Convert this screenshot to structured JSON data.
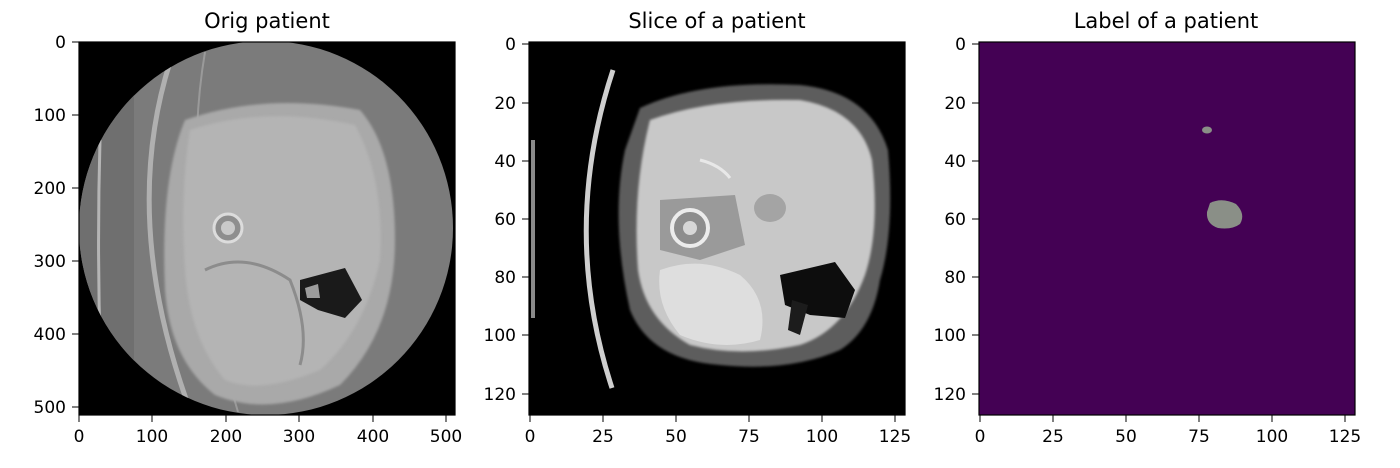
{
  "panels": [
    {
      "title": "Orig patient",
      "x_ticks": [
        "0",
        "100",
        "200",
        "300",
        "400",
        "500"
      ],
      "y_ticks": [
        "0",
        "100",
        "200",
        "300",
        "400",
        "500"
      ],
      "extent": [
        0,
        512
      ]
    },
    {
      "title": "Slice of a patient",
      "x_ticks": [
        "0",
        "25",
        "50",
        "75",
        "100",
        "125"
      ],
      "y_ticks": [
        "0",
        "20",
        "40",
        "60",
        "80",
        "100",
        "120"
      ],
      "extent": [
        0,
        128
      ]
    },
    {
      "title": "Label of a patient",
      "x_ticks": [
        "0",
        "25",
        "50",
        "75",
        "100",
        "125"
      ],
      "y_ticks": [
        "0",
        "20",
        "40",
        "60",
        "80",
        "100",
        "120"
      ],
      "extent": [
        0,
        128
      ]
    }
  ],
  "colors": {
    "label_background": "#440154",
    "label_region": "#8a8f87",
    "ct_background": "#000000"
  }
}
